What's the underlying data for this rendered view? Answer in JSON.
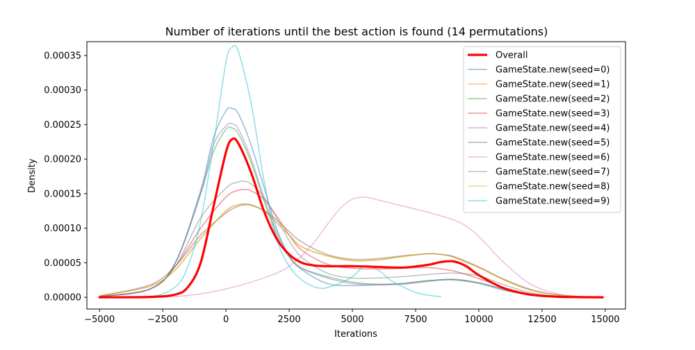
{
  "chart_data": {
    "type": "line",
    "title": "Number of iterations until the best action is found (14 permutations)",
    "xlabel": "Iterations",
    "ylabel": "Density",
    "xlim": [
      -5500,
      15800
    ],
    "ylim": [
      -1.7e-05,
      0.00037
    ],
    "xticks": [
      -5000,
      -2500,
      0,
      2500,
      5000,
      7500,
      10000,
      12500,
      15000
    ],
    "xtick_labels": [
      "−5000",
      "−2500",
      "0",
      "2500",
      "5000",
      "7500",
      "10000",
      "12500",
      "15000"
    ],
    "yticks": [
      0,
      5e-05,
      0.0001,
      0.00015,
      0.0002,
      0.00025,
      0.0003,
      0.00035
    ],
    "ytick_labels": [
      "0.00000",
      "0.00005",
      "0.00010",
      "0.00015",
      "0.00020",
      "0.00025",
      "0.00030",
      "0.00035"
    ],
    "grid": false,
    "legend_position": "top-right",
    "series": [
      {
        "name": "Overall",
        "color": "#ff0000",
        "linewidth": 3.2,
        "opacity": 1.0,
        "x": [
          -5000,
          -3000,
          -2000,
          -1500,
          -1000,
          -500,
          0,
          250,
          500,
          1000,
          1500,
          2000,
          2500,
          3000,
          3500,
          4000,
          5000,
          6000,
          7000,
          8000,
          8500,
          9000,
          9500,
          10000,
          11000,
          12000,
          13000,
          14000,
          14900
        ],
        "y": [
          0,
          5e-07,
          4e-06,
          1.5e-05,
          5e-05,
          0.00013,
          0.00021,
          0.000229,
          0.000222,
          0.00018,
          0.000125,
          8.5e-05,
          6.2e-05,
          5e-05,
          4.6e-05,
          4.5e-05,
          4.5e-05,
          4.4e-05,
          4.3e-05,
          4.7e-05,
          5.1e-05,
          5.2e-05,
          4.5e-05,
          3.2e-05,
          1.3e-05,
          4e-06,
          1e-06,
          2e-07,
          0
        ]
      },
      {
        "name": "GameState.new(seed=0)",
        "color": "#1f77b4",
        "linewidth": 1.5,
        "opacity": 0.5,
        "x": [
          -5000,
          -3000,
          -2000,
          -1000,
          -500,
          0,
          250,
          500,
          1000,
          1500,
          2000,
          2500,
          3000,
          4000,
          5000,
          6000,
          7000,
          8000,
          9000,
          10000,
          11000,
          12000,
          13000,
          14000,
          14900
        ],
        "y": [
          1e-06,
          1.2e-05,
          5e-05,
          0.000155,
          0.00023,
          0.00027,
          0.000273,
          0.000265,
          0.00022,
          0.00016,
          0.0001,
          6e-05,
          4e-05,
          2e-05,
          1.7e-05,
          1.8e-05,
          2e-05,
          2.4e-05,
          2.6e-05,
          2.1e-05,
          1.2e-05,
          4e-06,
          1e-06,
          0,
          0
        ]
      },
      {
        "name": "GameState.new(seed=1)",
        "color": "#ff7f0e",
        "linewidth": 1.5,
        "opacity": 0.5,
        "x": [
          -5000,
          -3000,
          -2000,
          -1000,
          0,
          500,
          800,
          1000,
          1500,
          2000,
          2500,
          3000,
          4000,
          5000,
          6000,
          7000,
          8000,
          8500,
          9000,
          10000,
          11000,
          12000,
          13000,
          14000,
          14900
        ],
        "y": [
          2e-06,
          1.6e-05,
          4e-05,
          8.5e-05,
          0.000125,
          0.000134,
          0.000135,
          0.000134,
          0.000125,
          0.000108,
          9e-05,
          7.3e-05,
          6e-05,
          5.3e-05,
          5.4e-05,
          5.9e-05,
          6.3e-05,
          6.2e-05,
          5.8e-05,
          4.3e-05,
          2.5e-05,
          1.1e-05,
          4e-06,
          1e-06,
          0
        ]
      },
      {
        "name": "GameState.new(seed=2)",
        "color": "#2ca02c",
        "linewidth": 1.5,
        "opacity": 0.5,
        "x": [
          -5000,
          -3000,
          -2000,
          -1000,
          -500,
          0,
          250,
          500,
          1000,
          1500,
          2000,
          2500,
          3000,
          4000,
          5000,
          6000,
          7000,
          8000,
          9000,
          10000,
          11000,
          12000,
          13000,
          14000,
          14900
        ],
        "y": [
          1e-06,
          1.2e-05,
          5e-05,
          0.00015,
          0.00021,
          0.000243,
          0.000245,
          0.000236,
          0.000195,
          0.00014,
          9e-05,
          5.8e-05,
          4.2e-05,
          3e-05,
          2.2e-05,
          1.9e-05,
          2e-05,
          2.4e-05,
          2.5e-05,
          2e-05,
          1e-05,
          4e-06,
          1e-06,
          0,
          0
        ]
      },
      {
        "name": "GameState.new(seed=3)",
        "color": "#d62728",
        "linewidth": 1.5,
        "opacity": 0.5,
        "x": [
          -5000,
          -3000,
          -2000,
          -1000,
          0,
          500,
          800,
          1000,
          1500,
          2000,
          2500,
          3000,
          4000,
          5000,
          6000,
          7000,
          8000,
          9000,
          10000,
          11000,
          12000,
          13000,
          14000,
          14900
        ],
        "y": [
          1e-06,
          1.2e-05,
          4.5e-05,
          0.0001,
          0.000145,
          0.000155,
          0.000156,
          0.000154,
          0.000142,
          0.000118,
          9e-05,
          6.8e-05,
          4.8e-05,
          4.2e-05,
          4.1e-05,
          4.2e-05,
          4.3e-05,
          3.8e-05,
          2.7e-05,
          1.4e-05,
          5e-06,
          1e-06,
          0,
          0
        ]
      },
      {
        "name": "GameState.new(seed=4)",
        "color": "#9467bd",
        "linewidth": 1.5,
        "opacity": 0.5,
        "x": [
          -5000,
          -3000,
          -2000,
          -1000,
          -500,
          0,
          250,
          500,
          1000,
          1500,
          2000,
          2500,
          3000,
          4000,
          5000,
          6000,
          7000,
          8000,
          9000,
          10000,
          11000,
          12000,
          13000,
          14000,
          14900
        ],
        "y": [
          1e-06,
          1.2e-05,
          5e-05,
          0.00015,
          0.00022,
          0.000248,
          0.000251,
          0.000243,
          0.0002,
          0.000145,
          9.5e-05,
          6e-05,
          4.2e-05,
          2.8e-05,
          2e-05,
          1.8e-05,
          1.9e-05,
          2.3e-05,
          2.6e-05,
          2.1e-05,
          1.1e-05,
          4e-06,
          1e-06,
          0,
          0
        ]
      },
      {
        "name": "GameState.new(seed=5)",
        "color": "#8c564b",
        "linewidth": 1.5,
        "opacity": 0.5,
        "x": [
          -5000,
          -3000,
          -2000,
          -1000,
          0,
          500,
          800,
          1000,
          1500,
          2000,
          2500,
          3000,
          4000,
          5000,
          6000,
          7000,
          8000,
          8500,
          9000,
          10000,
          11000,
          12000,
          13000,
          14000,
          14900
        ],
        "y": [
          2e-06,
          1.8e-05,
          4.5e-05,
          9e-05,
          0.000122,
          0.000132,
          0.000134,
          0.000133,
          0.000126,
          0.000112,
          9.5e-05,
          8e-05,
          6.2e-05,
          5.5e-05,
          5.6e-05,
          6e-05,
          6.3e-05,
          6.2e-05,
          5.9e-05,
          4.4e-05,
          2.6e-05,
          1.2e-05,
          4e-06,
          1e-06,
          0
        ]
      },
      {
        "name": "GameState.new(seed=6)",
        "color": "#e377c2",
        "linewidth": 1.5,
        "opacity": 0.5,
        "x": [
          -5000,
          -3000,
          -2000,
          -1000,
          0,
          1000,
          2000,
          2500,
          3000,
          3500,
          4000,
          4500,
          5000,
          5500,
          6000,
          7000,
          8000,
          9000,
          9500,
          10000,
          11000,
          12000,
          13000,
          14000,
          14900
        ],
        "y": [
          0,
          0,
          1e-06,
          5e-06,
          1.2e-05,
          2.2e-05,
          3.5e-05,
          4.5e-05,
          6e-05,
          8e-05,
          0.000105,
          0.000128,
          0.000142,
          0.000145,
          0.000141,
          0.000132,
          0.000123,
          0.000112,
          0.000103,
          8.8e-05,
          5e-05,
          2e-05,
          6e-06,
          1e-06,
          0
        ]
      },
      {
        "name": "GameState.new(seed=7)",
        "color": "#7f7f7f",
        "linewidth": 1.5,
        "opacity": 0.5,
        "x": [
          -5000,
          -3000,
          -2000,
          -1000,
          0,
          500,
          700,
          1000,
          1500,
          2000,
          2500,
          3000,
          4000,
          5000,
          6000,
          7000,
          8000,
          9000,
          10000,
          11000,
          12000,
          13000,
          14000,
          14900
        ],
        "y": [
          1e-06,
          1.2e-05,
          4.5e-05,
          0.000115,
          0.000158,
          0.000167,
          0.000168,
          0.000164,
          0.000145,
          0.000115,
          8.2e-05,
          5.8e-05,
          3.5e-05,
          2.8e-05,
          2.8e-05,
          3e-05,
          3.3e-05,
          3.5e-05,
          3.1e-05,
          1.8e-05,
          7e-06,
          2e-06,
          0,
          0
        ]
      },
      {
        "name": "GameState.new(seed=8)",
        "color": "#bcbd22",
        "linewidth": 1.5,
        "opacity": 0.5,
        "x": [
          -5000,
          -3000,
          -2000,
          -1000,
          0,
          500,
          800,
          1000,
          1500,
          2000,
          2500,
          3000,
          4000,
          5000,
          6000,
          7000,
          8000,
          8500,
          9000,
          10000,
          11000,
          12000,
          13000,
          14000,
          14900
        ],
        "y": [
          2e-06,
          1.6e-05,
          4e-05,
          8.5e-05,
          0.000125,
          0.000134,
          0.000135,
          0.000134,
          0.000125,
          0.000108,
          9e-05,
          7.3e-05,
          6e-05,
          5.3e-05,
          5.4e-05,
          5.9e-05,
          6.3e-05,
          6.2e-05,
          5.8e-05,
          4.3e-05,
          2.5e-05,
          1.1e-05,
          4e-06,
          1e-06,
          0
        ]
      },
      {
        "name": "GameState.new(seed=9)",
        "color": "#17becf",
        "linewidth": 1.5,
        "opacity": 0.5,
        "x": [
          -5000,
          -3000,
          -2000,
          -1500,
          -1000,
          -500,
          0,
          250,
          500,
          1000,
          1500,
          2000,
          2500,
          3000,
          3500,
          3800,
          4000,
          4500,
          5000,
          5500,
          6000,
          6500,
          7000,
          7500,
          8000,
          8500
        ],
        "y": [
          0,
          1e-06,
          1.5e-05,
          4.5e-05,
          0.00011,
          0.00022,
          0.00034,
          0.000362,
          0.000355,
          0.00028,
          0.00017,
          8.5e-05,
          4.5e-05,
          2.5e-05,
          1.5e-05,
          1.3e-05,
          1.4e-05,
          2e-05,
          3e-05,
          4.5e-05,
          4e-05,
          2.5e-05,
          1.5e-05,
          7e-06,
          3e-06,
          1e-06
        ]
      }
    ]
  }
}
